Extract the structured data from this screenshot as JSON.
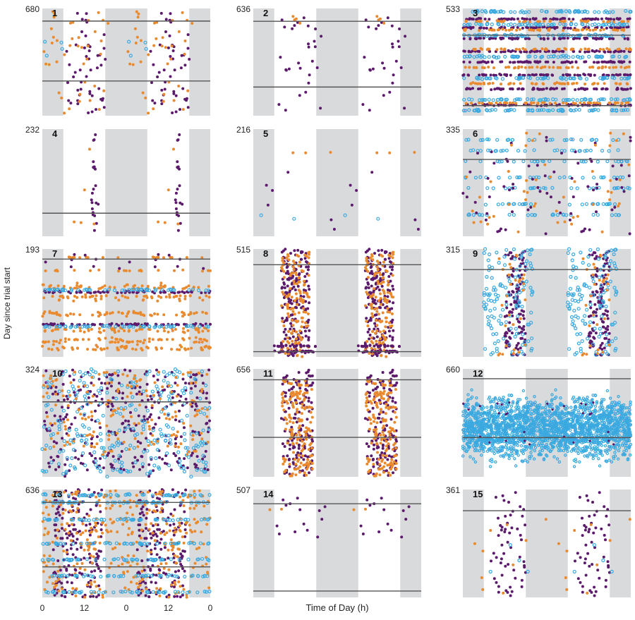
{
  "figure": {
    "ylabel": "Day since trial start",
    "xlabel": "Time of Day (h)",
    "x_ticks": [
      "0",
      "12",
      "0",
      "12",
      "0"
    ]
  },
  "colors": {
    "shade": "#d9dadc",
    "line": "#555555",
    "purple": "#5b1a6b",
    "orange": "#ea8a2e",
    "blue": "#3aa9e0"
  },
  "chart_data": [
    {
      "type": "scatter",
      "panel": "1",
      "ymax": 680,
      "ylim": [
        0,
        680
      ],
      "xlim": [
        0,
        48
      ],
      "ref_days": [
        600,
        220
      ],
      "series": [
        "purple",
        "orange",
        "blue"
      ],
      "density": "moderate"
    },
    {
      "type": "scatter",
      "panel": "2",
      "ymax": 636,
      "ylim": [
        0,
        636
      ],
      "xlim": [
        0,
        48
      ],
      "ref_days": [
        560,
        170
      ],
      "series": [
        "purple",
        "orange"
      ],
      "density": "sparse"
    },
    {
      "type": "scatter",
      "panel": "3",
      "ymax": 533,
      "ylim": [
        0,
        533
      ],
      "xlim": [
        0,
        48
      ],
      "ref_days": [
        400,
        50
      ],
      "series": [
        "purple",
        "orange",
        "blue"
      ],
      "density": "dense-bands"
    },
    {
      "type": "scatter",
      "panel": "4",
      "ymax": 232,
      "ylim": [
        0,
        232
      ],
      "xlim": [
        0,
        48
      ],
      "ref_days": [
        50
      ],
      "series": [
        "purple",
        "orange"
      ],
      "density": "sparse"
    },
    {
      "type": "scatter",
      "panel": "5",
      "ymax": 216,
      "ylim": [
        0,
        216
      ],
      "xlim": [
        0,
        48
      ],
      "ref_days": [],
      "series": [
        "purple",
        "orange",
        "blue"
      ],
      "density": "very-sparse"
    },
    {
      "type": "scatter",
      "panel": "6",
      "ymax": 335,
      "ylim": [
        0,
        335
      ],
      "xlim": [
        0,
        48
      ],
      "ref_days": [
        240
      ],
      "series": [
        "purple",
        "orange",
        "blue"
      ],
      "density": "moderate"
    },
    {
      "type": "scatter",
      "panel": "7",
      "ymax": 193,
      "ylim": [
        0,
        193
      ],
      "xlim": [
        0,
        48
      ],
      "ref_days": [
        175
      ],
      "series": [
        "purple",
        "orange",
        "blue"
      ],
      "density": "dense-bands"
    },
    {
      "type": "scatter",
      "panel": "8",
      "ymax": 515,
      "ylim": [
        0,
        515
      ],
      "xlim": [
        0,
        48
      ],
      "ref_days": [
        440,
        25
      ],
      "series": [
        "purple",
        "orange",
        "blue"
      ],
      "density": "dense-columns"
    },
    {
      "type": "scatter",
      "panel": "9",
      "ymax": 315,
      "ylim": [
        0,
        315
      ],
      "xlim": [
        0,
        48
      ],
      "ref_days": [
        255
      ],
      "series": [
        "purple",
        "orange",
        "blue"
      ],
      "density": "dense-columns"
    },
    {
      "type": "scatter",
      "panel": "10",
      "ymax": 324,
      "ylim": [
        0,
        324
      ],
      "xlim": [
        0,
        48
      ],
      "ref_days": [
        225
      ],
      "series": [
        "purple",
        "orange",
        "blue"
      ],
      "density": "dense"
    },
    {
      "type": "scatter",
      "panel": "11",
      "ymax": 656,
      "ylim": [
        0,
        656
      ],
      "xlim": [
        0,
        48
      ],
      "ref_days": [
        590,
        240
      ],
      "series": [
        "purple",
        "orange",
        "blue"
      ],
      "density": "dense-columns"
    },
    {
      "type": "scatter",
      "panel": "12",
      "ymax": 660,
      "ylim": [
        0,
        660
      ],
      "xlim": [
        0,
        48
      ],
      "ref_days": [
        600,
        240
      ],
      "series": [
        "blue",
        "purple"
      ],
      "density": "very-dense"
    },
    {
      "type": "scatter",
      "panel": "13",
      "ymax": 636,
      "ylim": [
        0,
        636
      ],
      "xlim": [
        0,
        48
      ],
      "ref_days": [
        560,
        180
      ],
      "series": [
        "purple",
        "orange",
        "blue"
      ],
      "density": "dense"
    },
    {
      "type": "scatter",
      "panel": "14",
      "ymax": 507,
      "ylim": [
        0,
        507
      ],
      "xlim": [
        0,
        48
      ],
      "ref_days": [
        440,
        30
      ],
      "series": [
        "purple",
        "orange"
      ],
      "density": "very-sparse"
    },
    {
      "type": "scatter",
      "panel": "15",
      "ymax": 361,
      "ylim": [
        0,
        361
      ],
      "xlim": [
        0,
        48
      ],
      "ref_days": [
        290
      ],
      "series": [
        "purple",
        "orange",
        "blue"
      ],
      "density": "sparse"
    }
  ]
}
